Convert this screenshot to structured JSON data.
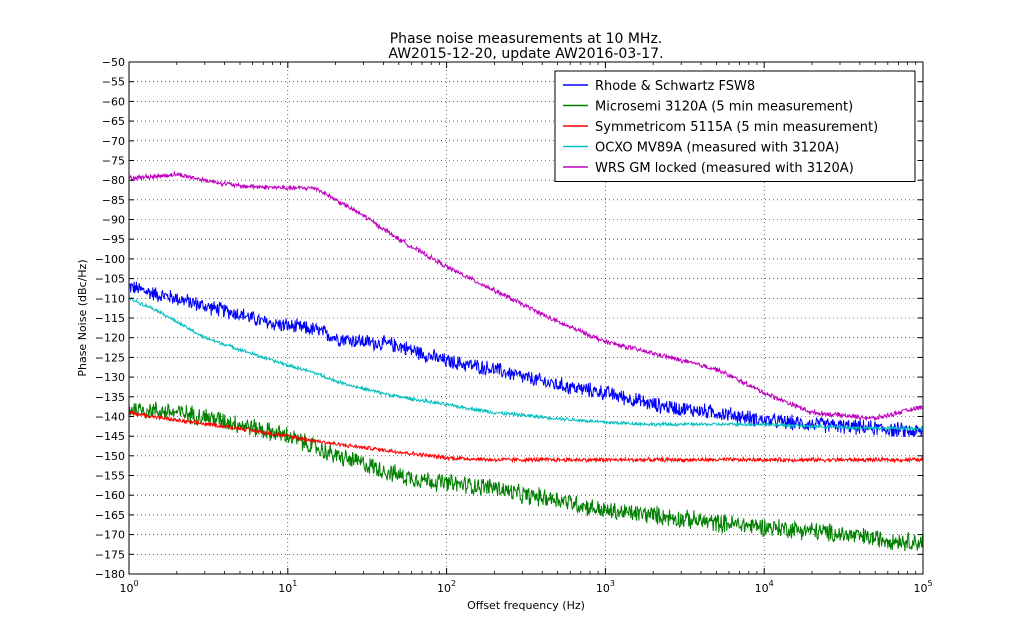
{
  "chart_data": {
    "type": "line",
    "title": "Phase noise measurements at 10 MHz.",
    "subtitle": "AW2015-12-20, update AW2016-03-17.",
    "xlabel": "Offset frequency (Hz)",
    "ylabel": "Phase Noise (dBc/Hz)",
    "x_scale": "log",
    "xlim": [
      1,
      100000
    ],
    "ylim": [
      -180,
      -50
    ],
    "grid": true,
    "legend_position": "top-right",
    "x_tick_values": [
      1,
      10,
      100,
      1000,
      10000,
      100000
    ],
    "x_tick_bases": [
      "10",
      "10",
      "10",
      "10",
      "10",
      "10"
    ],
    "x_tick_exps": [
      "0",
      "1",
      "2",
      "3",
      "4",
      "5"
    ],
    "y_ticks": [
      -50,
      -55,
      -60,
      -65,
      -70,
      -75,
      -80,
      -85,
      -90,
      -95,
      -100,
      -105,
      -110,
      -115,
      -120,
      -125,
      -130,
      -135,
      -140,
      -145,
      -150,
      -155,
      -160,
      -165,
      -170,
      -175,
      -180
    ],
    "y_tick_labels": [
      "−50",
      "−55",
      "−60",
      "−65",
      "−70",
      "−75",
      "−80",
      "−85",
      "−90",
      "−95",
      "−100",
      "−105",
      "−110",
      "−115",
      "−120",
      "−125",
      "−130",
      "−135",
      "−140",
      "−145",
      "−150",
      "−155",
      "−160",
      "−165",
      "−170",
      "−175",
      "−180"
    ],
    "series": [
      {
        "name": "Rhode & Schwartz FSW8",
        "color": "#0000ff",
        "x": [
          1,
          1.5,
          2,
          3,
          5,
          7,
          10,
          15,
          20,
          30,
          50,
          70,
          100,
          200,
          300,
          500,
          1000,
          2000,
          3000,
          5000,
          10000,
          20000,
          50000,
          100000
        ],
        "y": [
          -107,
          -109,
          -110,
          -112,
          -114,
          -116,
          -117,
          -118,
          -120,
          -121,
          -122,
          -124,
          -126,
          -128,
          -130,
          -132,
          -134,
          -137,
          -138,
          -139,
          -141,
          -142,
          -143,
          -144
        ]
      },
      {
        "name": "Microsemi 3120A (5 min measurement)",
        "color": "#008000",
        "x": [
          1,
          2,
          3,
          5,
          10,
          20,
          30,
          50,
          100,
          200,
          300,
          500,
          1000,
          2000,
          3000,
          5000,
          10000,
          20000,
          50000,
          100000
        ],
        "y": [
          -138,
          -139,
          -140,
          -142,
          -145,
          -150,
          -152,
          -155,
          -157,
          -158,
          -160,
          -161,
          -164,
          -165,
          -166,
          -167,
          -168,
          -169,
          -171,
          -172
        ]
      },
      {
        "name": "Symmetricom 5115A (5 min measurement)",
        "color": "#ff0000",
        "x": [
          1,
          2,
          5,
          10,
          20,
          50,
          100,
          200,
          500,
          1000,
          2000,
          5000,
          10000,
          100000
        ],
        "y": [
          -139,
          -141,
          -143,
          -145,
          -147,
          -149,
          -150.5,
          -151,
          -151,
          -151,
          -151,
          -151,
          -151,
          -151
        ]
      },
      {
        "name": "OCXO MV89A (measured with 3120A)",
        "color": "#00bfbf",
        "x": [
          1,
          1.5,
          2,
          3,
          5,
          7,
          10,
          15,
          20,
          30,
          50,
          100,
          200,
          500,
          1000,
          2000,
          5000,
          10000,
          20000,
          50000,
          100000
        ],
        "y": [
          -110,
          -113,
          -116,
          -120,
          -123,
          -125,
          -127,
          -129,
          -131,
          -133,
          -135,
          -137,
          -139,
          -140.5,
          -141.5,
          -142,
          -142,
          -142,
          -142.5,
          -143,
          -143
        ]
      },
      {
        "name": "WRS GM locked (measured with 3120A)",
        "color": "#bf00bf",
        "x": [
          1,
          1.5,
          2,
          3,
          5,
          10,
          15,
          20,
          30,
          50,
          100,
          200,
          500,
          1000,
          2000,
          5000,
          10000,
          20000,
          50000,
          100000
        ],
        "y": [
          -79.5,
          -79,
          -78.5,
          -80,
          -81.5,
          -82,
          -82,
          -85,
          -89,
          -95,
          -102,
          -108,
          -116,
          -121,
          -124,
          -128,
          -134,
          -139,
          -140.5,
          -137.5
        ]
      }
    ]
  }
}
